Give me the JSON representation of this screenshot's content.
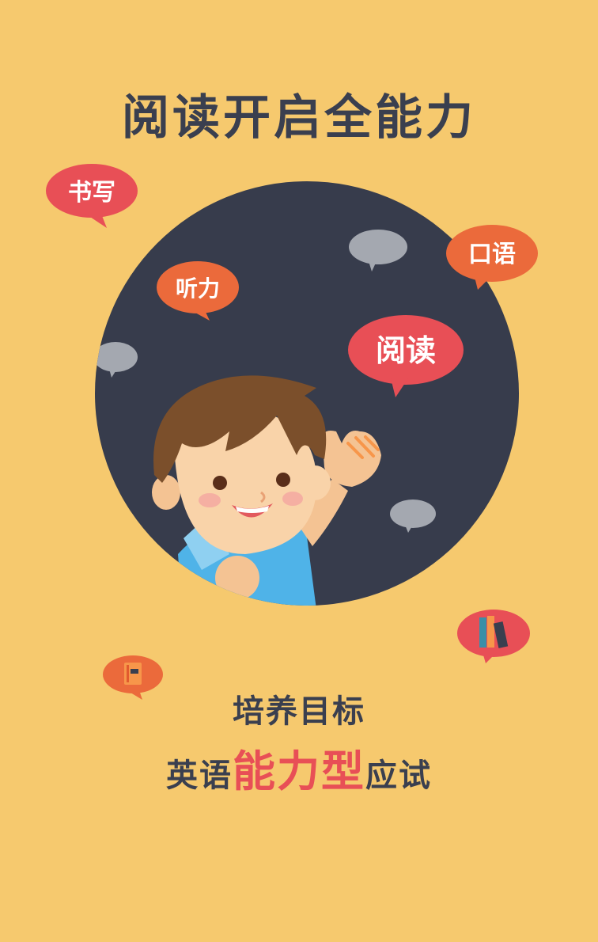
{
  "title": "阅读开启全能力",
  "bubbles": {
    "writing": "书写",
    "listening": "听力",
    "speaking": "口语",
    "reading": "阅读"
  },
  "subtitle": "培养目标",
  "slogan": {
    "prefix": "英语",
    "highlight": "能力型",
    "suffix": "应试"
  },
  "colors": {
    "background": "#F6C96E",
    "circle": "#373C4C",
    "bubble_red": "#E84F56",
    "bubble_orange": "#EB6A3B",
    "bubble_gray": "#A4A8B0",
    "text_dark": "#3A3F4F",
    "highlight": "#E84F56"
  },
  "icons": [
    "speech-bubble-icon",
    "book-icon",
    "books-icon",
    "boy-illustration"
  ]
}
